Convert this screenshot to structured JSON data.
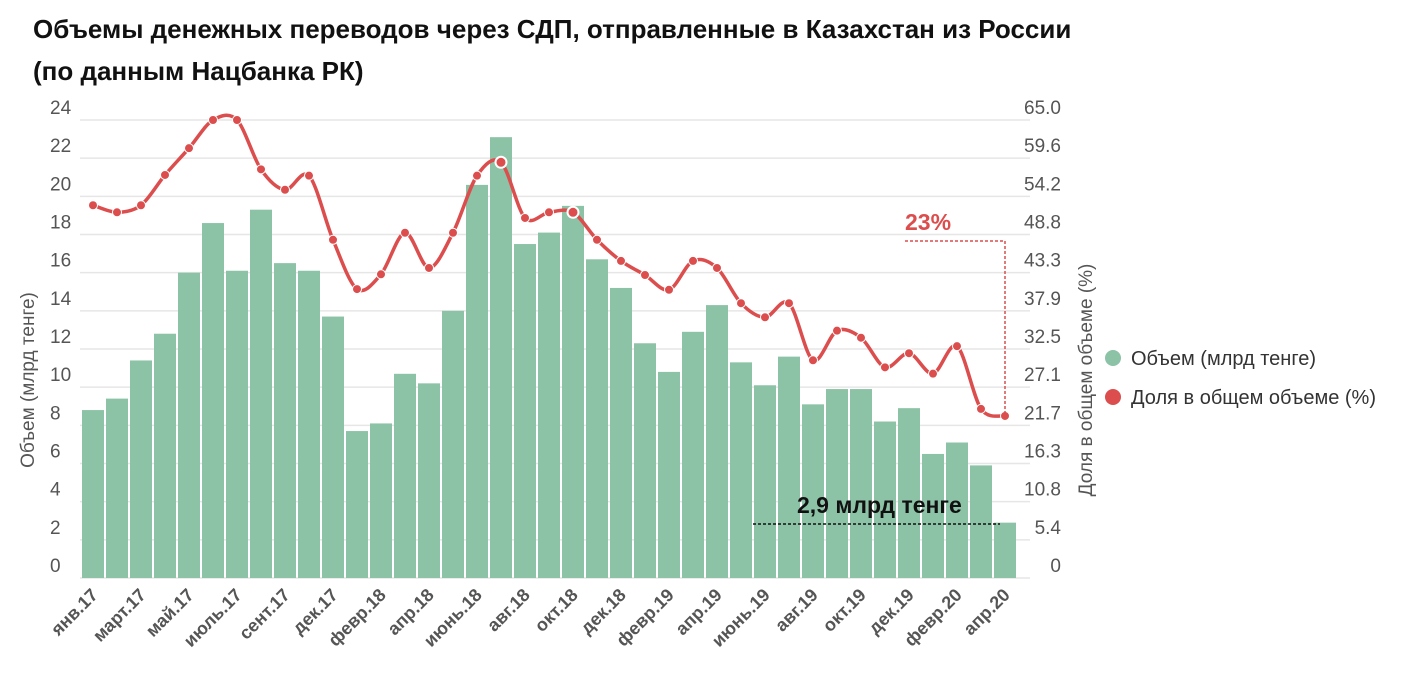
{
  "title_line1": "Объемы денежных переводов через СДП, отправленные в Казахстан из России",
  "title_line2": "(по данным Нацбанка РК)",
  "colors": {
    "bars": "#8cc2a5",
    "line": "#dc4d4d",
    "grid": "#e6e6e6"
  },
  "chart_data": {
    "type": "bar+line",
    "x_tick_labels": [
      "янв.17",
      "март.17",
      "май.17",
      "июль.17",
      "сент.17",
      "дек.17",
      "февр.18",
      "апр.18",
      "июнь.18",
      "авг.18",
      "окт.18",
      "дек.18",
      "февр.19",
      "апр.19",
      "июнь.19",
      "авг.19",
      "окт.19",
      "дек.19",
      "февр.20",
      "апр.20"
    ],
    "label_every": 2,
    "series": [
      {
        "name": "Объем (млрд тенге)",
        "type": "bar",
        "axis": "left",
        "values": [
          8.8,
          9.4,
          11.4,
          12.8,
          16.0,
          18.6,
          16.1,
          19.3,
          16.5,
          16.1,
          13.7,
          7.7,
          8.1,
          10.7,
          10.2,
          14.0,
          20.6,
          23.1,
          17.5,
          18.1,
          19.5,
          16.7,
          15.2,
          12.3,
          10.8,
          12.9,
          14.3,
          11.3,
          10.1,
          11.6,
          9.1,
          9.9,
          9.9,
          8.2,
          8.9,
          6.5,
          7.1,
          5.9,
          2.9
        ]
      },
      {
        "name": "Доля в общем объеме (%)",
        "type": "line",
        "axis": "right",
        "values": [
          52.9,
          51.9,
          52.9,
          57.2,
          61.0,
          65.0,
          65.0,
          58.0,
          55.1,
          57.1,
          48.0,
          41.0,
          43.1,
          49.0,
          44.0,
          49.0,
          57.1,
          59.0,
          51.1,
          51.9,
          51.9,
          48.0,
          45.0,
          43.0,
          40.9,
          45.0,
          44.0,
          39.0,
          37.0,
          39.0,
          30.9,
          35.1,
          34.1,
          29.9,
          31.9,
          29.0,
          32.9,
          24.0,
          23.0
        ],
        "highlighted_indices": [
          17,
          20
        ]
      }
    ],
    "y_left": {
      "label": "Объем (млрд тенге)",
      "range": [
        0,
        24
      ],
      "ticks": [
        "0",
        "2",
        "4",
        "6",
        "8",
        "10",
        "12",
        "14",
        "16",
        "18",
        "20",
        "22",
        "24"
      ]
    },
    "y_right": {
      "label": "Доля в общем объеме (%)",
      "range": [
        0,
        65
      ],
      "ticks": [
        "0",
        "5.4",
        "10.8",
        "16.3",
        "21.7",
        "27.1",
        "32.5",
        "37.9",
        "43.3",
        "48.8",
        "54.2",
        "59.6",
        "65.0"
      ]
    },
    "grid": true,
    "legend_position": "right",
    "annotations": {
      "share_label": "23%",
      "volume_label": "2,9 млрд тенге"
    }
  }
}
